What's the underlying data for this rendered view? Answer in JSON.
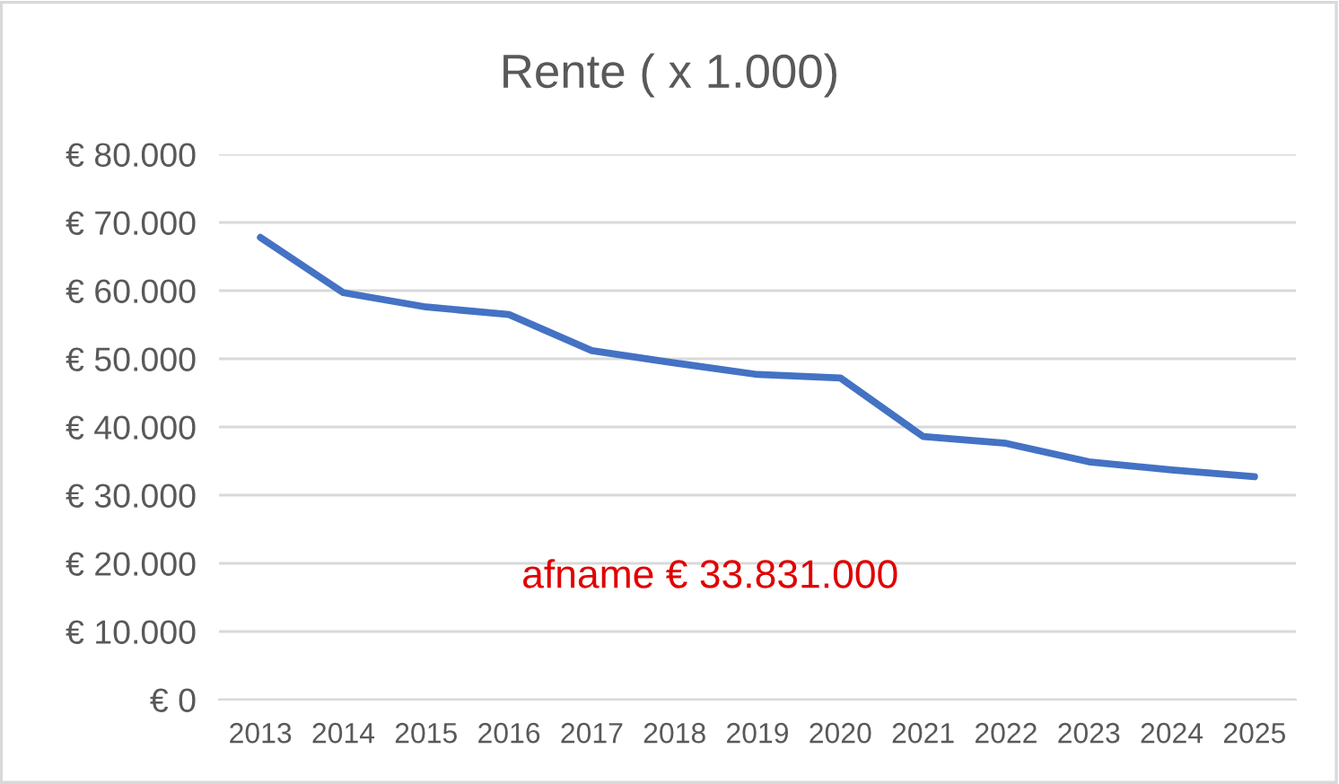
{
  "chart_data": {
    "type": "line",
    "title": "Rente ( x 1.000)",
    "categories": [
      "2013",
      "2014",
      "2015",
      "2016",
      "2017",
      "2018",
      "2019",
      "2020",
      "2021",
      "2022",
      "2023",
      "2024",
      "2025"
    ],
    "series": [
      {
        "color": "#4472c4",
        "values": [
          67800,
          59700,
          57600,
          56500,
          51200,
          49400,
          47700,
          47200,
          38600,
          37600,
          34900,
          33700,
          32700
        ]
      }
    ],
    "ylim": [
      0,
      80000
    ],
    "yticks": [
      {
        "value": 0,
        "label": "€ 0"
      },
      {
        "value": 10000,
        "label": "€ 10.000"
      },
      {
        "value": 20000,
        "label": "€ 20.000"
      },
      {
        "value": 30000,
        "label": "€ 30.000"
      },
      {
        "value": 40000,
        "label": "€ 40.000"
      },
      {
        "value": 50000,
        "label": "€ 50.000"
      },
      {
        "value": 60000,
        "label": "€ 60.000"
      },
      {
        "value": 70000,
        "label": "€ 70.000"
      },
      {
        "value": 80000,
        "label": "€ 80.000"
      }
    ],
    "grid": "y",
    "line_style": "solid",
    "annotations": [
      "afname € 33.831.000"
    ]
  }
}
